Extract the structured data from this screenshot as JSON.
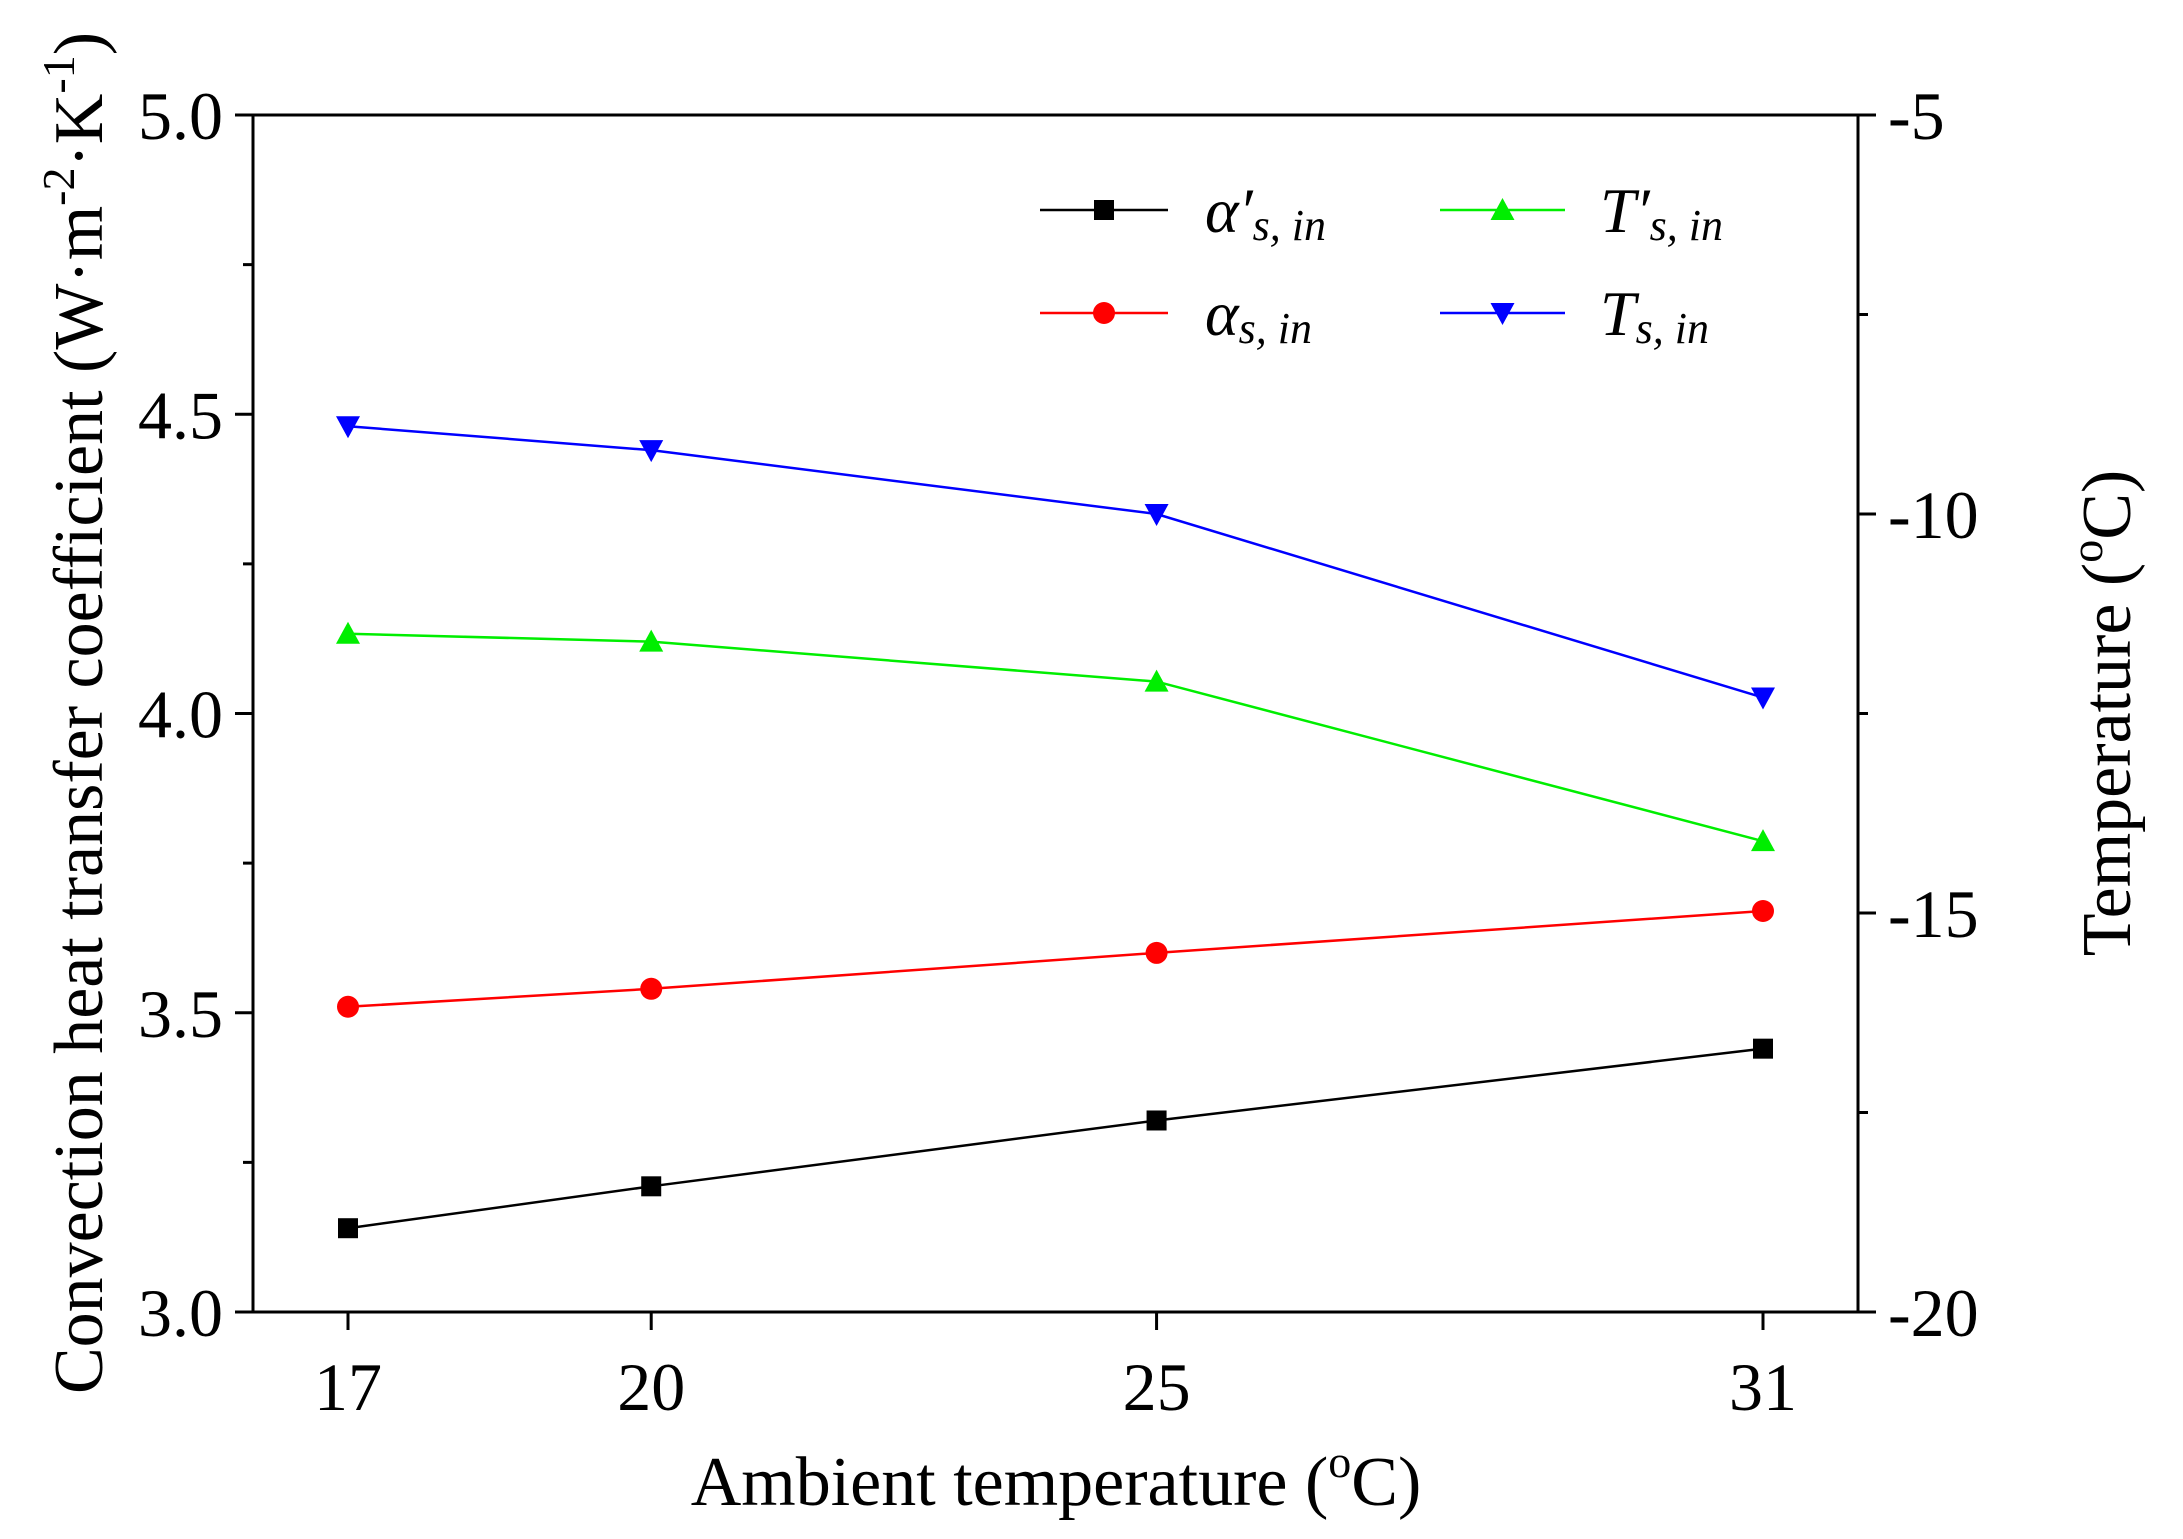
{
  "chart_data": {
    "type": "line",
    "title": "",
    "xlabel": "Ambient temperature (oC)",
    "ylabel": "Convection heat transfer coefficient (W·m-2·K-1)",
    "y2label": "Temperature (oC)",
    "categories": [
      "17",
      "20",
      "25",
      "31"
    ],
    "x": [
      17,
      20,
      25,
      31
    ],
    "ylim": [
      3.0,
      5.0
    ],
    "y2lim": [
      -20,
      -5
    ],
    "yticks": [
      "3.0",
      "3.5",
      "4.0",
      "4.5",
      "5.0"
    ],
    "y2ticks": [
      "-20",
      "-15",
      "-10",
      "-5"
    ],
    "grid": false,
    "legend_position": "top-right",
    "series": [
      {
        "name": "α′s, in",
        "symbol": "α′",
        "sub": "s, in",
        "axis": "left",
        "color": "#000000",
        "marker": "square",
        "values": [
          3.14,
          3.21,
          3.32,
          3.44
        ]
      },
      {
        "name": "αs, in",
        "symbol": "α",
        "sub": "s, in",
        "axis": "left",
        "color": "#ff0000",
        "marker": "circle",
        "values": [
          3.51,
          3.54,
          3.6,
          3.67
        ]
      },
      {
        "name": "T′s, in",
        "symbol": "T′",
        "sub": "s, in",
        "axis": "right",
        "color": "#00ee00",
        "marker": "triangle-up",
        "values": [
          -11.5,
          -11.6,
          -12.1,
          -14.1
        ]
      },
      {
        "name": "Ts, in",
        "symbol": "T",
        "sub": "s, in",
        "axis": "right",
        "color": "#0000ff",
        "marker": "triangle-down",
        "values": [
          -8.9,
          -9.2,
          -10.0,
          -12.3
        ]
      }
    ]
  }
}
